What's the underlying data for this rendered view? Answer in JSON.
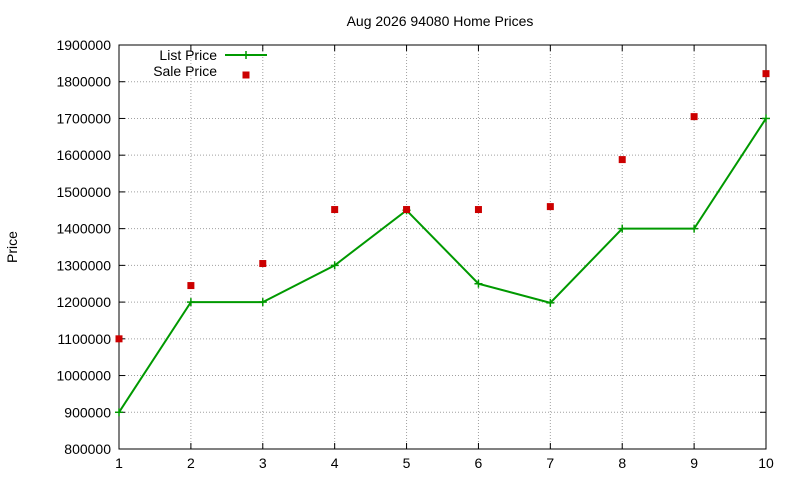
{
  "chart_data": {
    "type": "line",
    "title": "Aug 2026 94080 Home Prices",
    "xlabel": "",
    "ylabel": "Price",
    "xlim": [
      1,
      10
    ],
    "ylim": [
      800000,
      1900000
    ],
    "x_ticks": [
      "1",
      "2",
      "3",
      "4",
      "5",
      "6",
      "7",
      "8",
      "9",
      "10"
    ],
    "y_ticks": [
      "800000",
      "900000",
      "1000000",
      "1100000",
      "1200000",
      "1300000",
      "1400000",
      "1500000",
      "1600000",
      "1700000",
      "1800000",
      "1900000"
    ],
    "grid": true,
    "legend_position": "top-left",
    "x": [
      1,
      2,
      3,
      4,
      5,
      6,
      7,
      8,
      9,
      10
    ],
    "series": [
      {
        "name": "List Price",
        "style": "line-with-plus-markers",
        "color": "#009900",
        "values": [
          900000,
          1200000,
          1200000,
          1300000,
          1450000,
          1250000,
          1198000,
          1400000,
          1400000,
          1700000
        ]
      },
      {
        "name": "Sale Price",
        "style": "square-markers",
        "color": "#cc0000",
        "values": [
          1100000,
          1245000,
          1305000,
          1452000,
          1452000,
          1452000,
          1460000,
          1588000,
          1705000,
          1822000
        ]
      }
    ]
  }
}
